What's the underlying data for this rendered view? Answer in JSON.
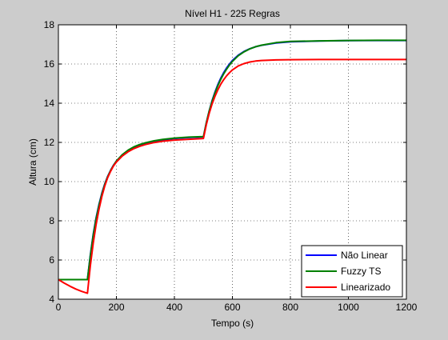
{
  "chart_data": {
    "type": "line",
    "title": "Nível H1 - 225 Regras",
    "xlabel": "Tempo (s)",
    "ylabel": "Altura (cm)",
    "xlim": [
      0,
      1200
    ],
    "ylim": [
      4,
      18
    ],
    "xticks": [
      0,
      200,
      400,
      600,
      800,
      1000,
      1200
    ],
    "yticks": [
      4,
      6,
      8,
      10,
      12,
      14,
      16,
      18
    ],
    "grid": true,
    "legend_position": "bottom-right",
    "series": [
      {
        "name": "Não Linear",
        "color": "#0000ff",
        "x": [
          0,
          100,
          100,
          110,
          120,
          130,
          140,
          150,
          160,
          170,
          180,
          190,
          200,
          220,
          240,
          260,
          280,
          300,
          330,
          360,
          400,
          450,
          500,
          500,
          510,
          520,
          530,
          540,
          550,
          560,
          570,
          580,
          590,
          600,
          620,
          640,
          660,
          680,
          700,
          750,
          800,
          900,
          1000,
          1100,
          1200
        ],
        "y": [
          5.0,
          5.0,
          5.0,
          6.25,
          7.3,
          8.15,
          8.85,
          9.42,
          9.89,
          10.27,
          10.58,
          10.84,
          11.05,
          11.36,
          11.58,
          11.74,
          11.86,
          11.95,
          12.05,
          12.13,
          12.2,
          12.25,
          12.28,
          12.28,
          13.0,
          13.61,
          14.13,
          14.58,
          14.96,
          15.28,
          15.56,
          15.8,
          16.0,
          16.18,
          16.45,
          16.64,
          16.78,
          16.88,
          16.95,
          17.07,
          17.13,
          17.17,
          17.19,
          17.2,
          17.2
        ]
      },
      {
        "name": "Fuzzy TS",
        "color": "#008000",
        "x": [
          0,
          100,
          100,
          110,
          120,
          130,
          140,
          150,
          160,
          170,
          180,
          190,
          200,
          220,
          240,
          260,
          280,
          300,
          330,
          360,
          400,
          450,
          500,
          500,
          510,
          520,
          530,
          540,
          550,
          560,
          570,
          580,
          590,
          600,
          620,
          640,
          660,
          680,
          700,
          750,
          800,
          900,
          1000,
          1100,
          1200
        ],
        "y": [
          5.0,
          5.0,
          5.0,
          6.2,
          7.25,
          8.1,
          8.8,
          9.38,
          9.86,
          10.25,
          10.57,
          10.83,
          11.05,
          11.37,
          11.6,
          11.77,
          11.89,
          11.98,
          12.08,
          12.15,
          12.22,
          12.27,
          12.3,
          12.3,
          13.0,
          13.6,
          14.1,
          14.53,
          14.9,
          15.22,
          15.5,
          15.74,
          15.95,
          16.13,
          16.42,
          16.62,
          16.77,
          16.88,
          16.96,
          17.09,
          17.15,
          17.18,
          17.2,
          17.21,
          17.21
        ]
      },
      {
        "name": "Linearizado",
        "color": "#ff0000",
        "x": [
          0,
          20,
          40,
          60,
          80,
          100,
          100,
          110,
          120,
          130,
          140,
          150,
          160,
          170,
          180,
          190,
          200,
          220,
          240,
          260,
          280,
          300,
          330,
          360,
          400,
          450,
          500,
          500,
          510,
          520,
          530,
          540,
          550,
          560,
          570,
          580,
          590,
          600,
          620,
          640,
          660,
          680,
          700,
          750,
          800,
          900,
          1000,
          1100,
          1200
        ],
        "y": [
          5.0,
          4.82,
          4.66,
          4.52,
          4.4,
          4.3,
          4.3,
          5.7,
          6.85,
          7.8,
          8.6,
          9.25,
          9.78,
          10.2,
          10.53,
          10.8,
          11.0,
          11.3,
          11.52,
          11.68,
          11.8,
          11.89,
          11.99,
          12.06,
          12.12,
          12.16,
          12.2,
          12.2,
          12.9,
          13.48,
          13.96,
          14.36,
          14.69,
          14.97,
          15.2,
          15.4,
          15.56,
          15.7,
          15.9,
          16.02,
          16.1,
          16.15,
          16.18,
          16.21,
          16.22,
          16.23,
          16.23,
          16.23,
          16.23
        ]
      }
    ]
  }
}
